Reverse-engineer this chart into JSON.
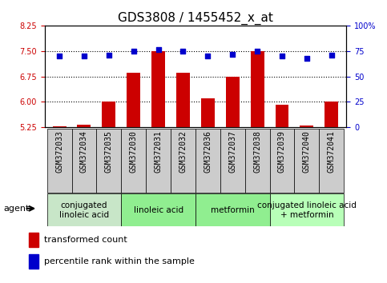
{
  "title": "GDS3808 / 1455452_x_at",
  "samples": [
    "GSM372033",
    "GSM372034",
    "GSM372035",
    "GSM372030",
    "GSM372031",
    "GSM372032",
    "GSM372036",
    "GSM372037",
    "GSM372038",
    "GSM372039",
    "GSM372040",
    "GSM372041"
  ],
  "bar_values": [
    5.28,
    5.33,
    6.0,
    6.85,
    7.5,
    6.85,
    6.1,
    6.75,
    7.5,
    5.92,
    5.3,
    6.0
  ],
  "percentile_values": [
    70,
    70,
    71,
    75,
    76,
    75,
    70,
    72,
    75,
    70,
    68,
    71
  ],
  "bar_bottom": 5.25,
  "ylim_left": [
    5.25,
    8.25
  ],
  "ylim_right": [
    0,
    100
  ],
  "yticks_left": [
    5.25,
    6.0,
    6.75,
    7.5,
    8.25
  ],
  "yticks_right": [
    0,
    25,
    50,
    75,
    100
  ],
  "ytick_labels_right": [
    "0",
    "25",
    "50",
    "75",
    "100%"
  ],
  "bar_color": "#cc0000",
  "dot_color": "#0000cc",
  "groups": [
    {
      "label": "conjugated\nlinoleic acid",
      "start": 0,
      "end": 3,
      "color": "#c8e6c8"
    },
    {
      "label": "linoleic acid",
      "start": 3,
      "end": 6,
      "color": "#90ee90"
    },
    {
      "label": "metformin",
      "start": 6,
      "end": 9,
      "color": "#90ee90"
    },
    {
      "label": "conjugated linoleic acid\n+ metformin",
      "start": 9,
      "end": 12,
      "color": "#b8ffb8"
    }
  ],
  "legend_bar_label": "transformed count",
  "legend_dot_label": "percentile rank within the sample",
  "xlabel_agent": "agent",
  "bar_color_red": "#cc0000",
  "dot_color_blue": "#0000cc",
  "tick_bg_color": "#cccccc",
  "title_fontsize": 11,
  "tick_fontsize": 7,
  "group_fontsize": 7.5,
  "legend_fontsize": 8
}
